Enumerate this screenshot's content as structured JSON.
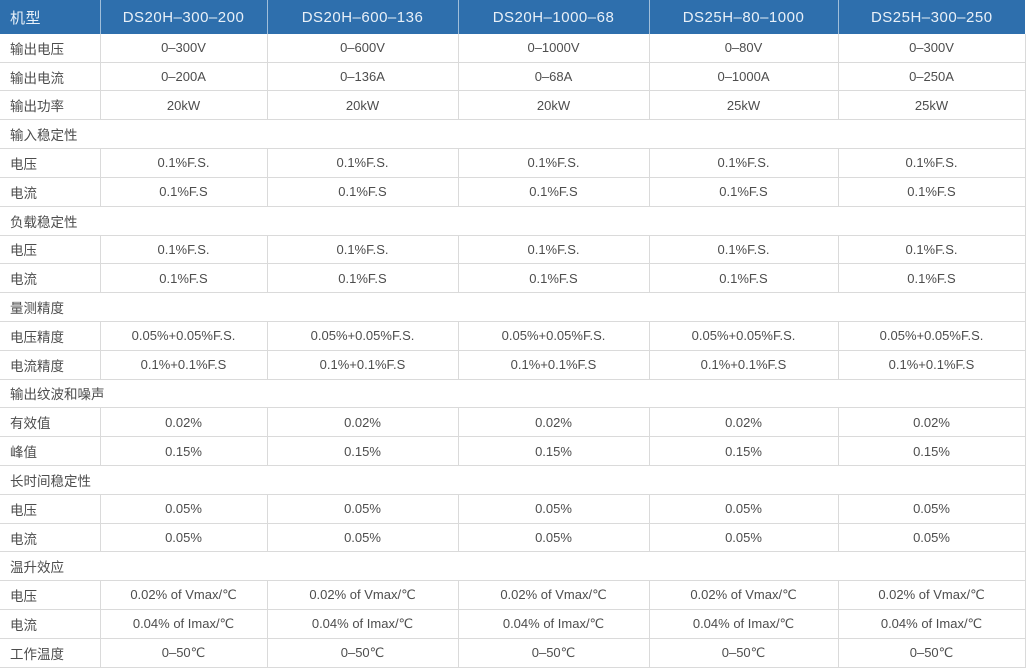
{
  "table": {
    "header": {
      "label": "机型",
      "models": [
        "DS20H–300–200",
        "DS20H–600–136",
        "DS20H–1000–68",
        "DS25H–80–1000",
        "DS25H–300–250"
      ]
    },
    "rows": [
      {
        "type": "data",
        "label": "输出电压",
        "values": [
          "0–300V",
          "0–600V",
          "0–1000V",
          "0–80V",
          "0–300V"
        ]
      },
      {
        "type": "data",
        "label": "输出电流",
        "values": [
          "0–200A",
          "0–136A",
          "0–68A",
          "0–1000A",
          "0–250A"
        ]
      },
      {
        "type": "data",
        "label": "输出功率",
        "values": [
          "20kW",
          "20kW",
          "20kW",
          "25kW",
          "25kW"
        ]
      },
      {
        "type": "section",
        "label": "输入稳定性"
      },
      {
        "type": "data",
        "label": "电压",
        "values": [
          "0.1%F.S.",
          "0.1%F.S.",
          "0.1%F.S.",
          "0.1%F.S.",
          "0.1%F.S."
        ]
      },
      {
        "type": "data",
        "label": "电流",
        "values": [
          "0.1%F.S",
          "0.1%F.S",
          "0.1%F.S",
          "0.1%F.S",
          "0.1%F.S"
        ]
      },
      {
        "type": "section",
        "label": "负载稳定性"
      },
      {
        "type": "data",
        "label": "电压",
        "values": [
          "0.1%F.S.",
          "0.1%F.S.",
          "0.1%F.S.",
          "0.1%F.S.",
          "0.1%F.S."
        ]
      },
      {
        "type": "data",
        "label": "电流",
        "values": [
          "0.1%F.S",
          "0.1%F.S",
          "0.1%F.S",
          "0.1%F.S",
          "0.1%F.S"
        ]
      },
      {
        "type": "section",
        "label": "量测精度"
      },
      {
        "type": "data",
        "label": "电压精度",
        "values": [
          "0.05%+0.05%F.S.",
          "0.05%+0.05%F.S.",
          "0.05%+0.05%F.S.",
          "0.05%+0.05%F.S.",
          "0.05%+0.05%F.S."
        ]
      },
      {
        "type": "data",
        "label": "电流精度",
        "values": [
          "0.1%+0.1%F.S",
          "0.1%+0.1%F.S",
          "0.1%+0.1%F.S",
          "0.1%+0.1%F.S",
          "0.1%+0.1%F.S"
        ]
      },
      {
        "type": "section",
        "label": "输出纹波和噪声"
      },
      {
        "type": "data",
        "label": "有效值",
        "values": [
          "0.02%",
          "0.02%",
          "0.02%",
          "0.02%",
          "0.02%"
        ]
      },
      {
        "type": "data",
        "label": "峰值",
        "values": [
          "0.15%",
          "0.15%",
          "0.15%",
          "0.15%",
          "0.15%"
        ]
      },
      {
        "type": "section",
        "label": "长时间稳定性"
      },
      {
        "type": "data",
        "label": "电压",
        "values": [
          "0.05%",
          "0.05%",
          "0.05%",
          "0.05%",
          "0.05%"
        ]
      },
      {
        "type": "data",
        "label": "电流",
        "values": [
          "0.05%",
          "0.05%",
          "0.05%",
          "0.05%",
          "0.05%"
        ]
      },
      {
        "type": "section",
        "label": "温升效应"
      },
      {
        "type": "data",
        "label": "电压",
        "values": [
          "0.02% of Vmax/℃",
          "0.02% of Vmax/℃",
          "0.02% of Vmax/℃",
          "0.02% of Vmax/℃",
          "0.02% of Vmax/℃"
        ]
      },
      {
        "type": "data",
        "label": "电流",
        "values": [
          "0.04% of Imax/℃",
          "0.04% of Imax/℃",
          "0.04% of Imax/℃",
          "0.04% of Imax/℃",
          "0.04% of Imax/℃"
        ]
      },
      {
        "type": "data",
        "label": "工作温度",
        "values": [
          "0–50℃",
          "0–50℃",
          "0–50℃",
          "0–50℃",
          "0–50℃"
        ]
      }
    ],
    "colors": {
      "header_bg": "#2e6fad",
      "header_text": "#e8f0f8",
      "border": "#dadada",
      "body_text": "#4d4d4d"
    }
  }
}
